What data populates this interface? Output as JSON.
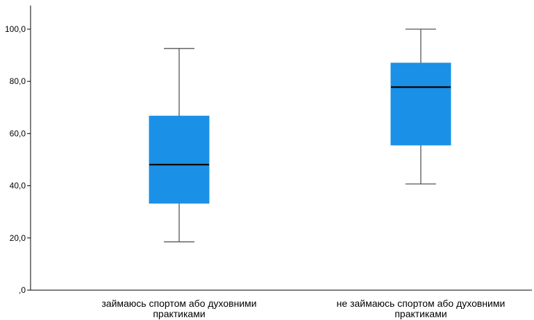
{
  "chart_data": {
    "type": "boxplot",
    "title": "",
    "xlabel": "",
    "ylabel": "",
    "ylim": [
      0,
      100
    ],
    "y_ticks": [
      {
        "value": 0,
        "label": ",0"
      },
      {
        "value": 20,
        "label": "20,0"
      },
      {
        "value": 40,
        "label": "40,0"
      },
      {
        "value": 60,
        "label": "60,0"
      },
      {
        "value": 80,
        "label": "80,0"
      },
      {
        "value": 100,
        "label": "100,0"
      }
    ],
    "categories": [
      {
        "line1": "займаюсь спортом або духовними",
        "line2": "практиками"
      },
      {
        "line1": "не займаюсь спортом або духовними",
        "line2": "практиками"
      }
    ],
    "boxes": [
      {
        "min": 18.5,
        "q1": 33.3,
        "median": 48.1,
        "q3": 66.7,
        "max": 92.6
      },
      {
        "min": 40.7,
        "q1": 55.6,
        "median": 77.8,
        "q3": 87.0,
        "max": 100.0
      }
    ],
    "box_color": "#1a90e6",
    "grid": false,
    "legend": "none"
  }
}
